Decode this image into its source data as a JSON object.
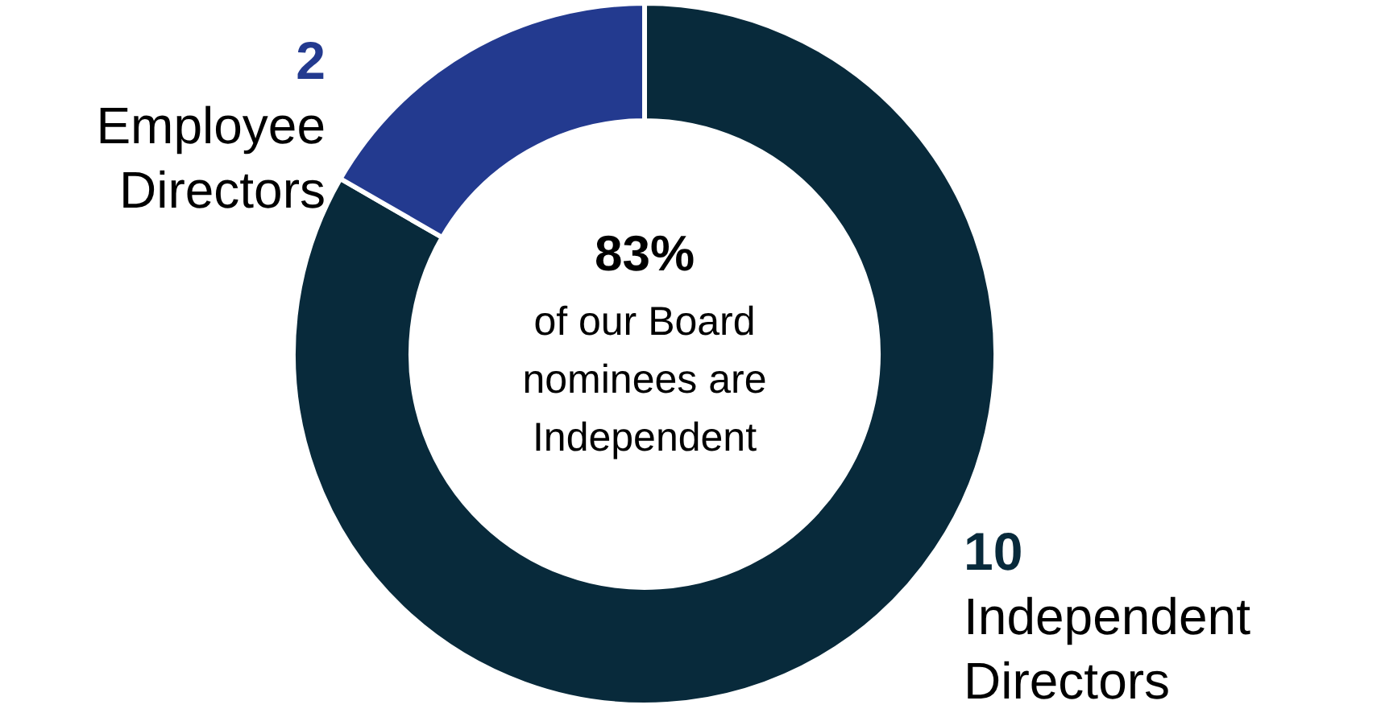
{
  "chart_data": {
    "type": "donut",
    "categories": [
      "Independent Directors",
      "Employee Directors"
    ],
    "values": [
      10,
      2
    ],
    "colors": [
      "#082a3b",
      "#233a8f"
    ],
    "data_labels": true,
    "annotations": [
      "83%",
      "of our Board nominees are Independent"
    ]
  }
}
